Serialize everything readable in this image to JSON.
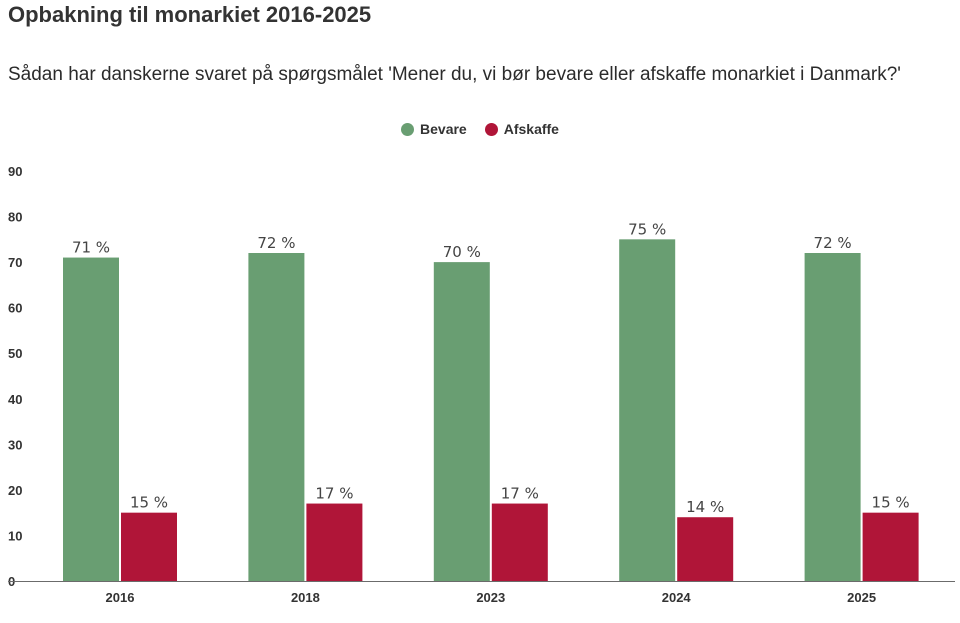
{
  "chart_data": {
    "type": "bar",
    "title": "Opbakning til monarkiet 2016-2025",
    "subtitle": "Sådan har danskerne svaret på spørgsmålet 'Mener du, vi bør bevare eller afskaffe monarkiet i Danmark?'",
    "categories": [
      "2016",
      "2018",
      "2023",
      "2024",
      "2025"
    ],
    "series": [
      {
        "name": "Bevare",
        "color": "#699e72",
        "values": [
          71,
          72,
          70,
          75,
          72
        ],
        "labels": [
          "71 %",
          "72 %",
          "70 %",
          "75 %",
          "72 %"
        ]
      },
      {
        "name": "Afskaffe",
        "color": "#b01538",
        "values": [
          15,
          17,
          17,
          14,
          15
        ],
        "labels": [
          "15 %",
          "17 %",
          "17 %",
          "14 %",
          "15 %"
        ]
      }
    ],
    "yticks": [
      0,
      10,
      20,
      30,
      40,
      50,
      60,
      70,
      80,
      90
    ],
    "ylim": [
      0,
      90
    ],
    "legend_position": "top-center",
    "grid": false
  }
}
